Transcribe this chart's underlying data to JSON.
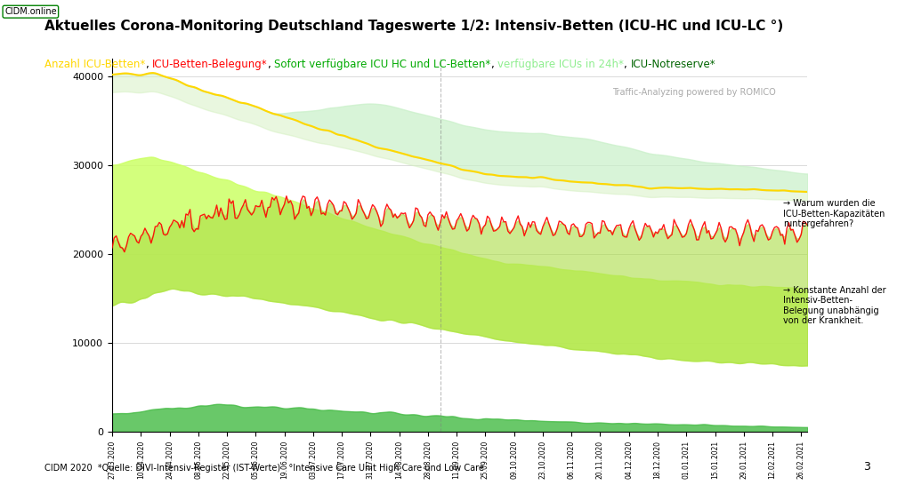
{
  "title": "Aktuelles Corona-Monitoring Deutschland Tageswerte 1/2: Intensiv-Betten (ICU-HC und ICU-LC °)",
  "subtitle_parts": [
    {
      "text": "Anzahl ICU-Betten*",
      "color": "#FFD700"
    },
    {
      "text": ", ",
      "color": "#000000"
    },
    {
      "text": "ICU-Betten-Belegung*",
      "color": "#FF0000"
    },
    {
      "text": ", ",
      "color": "#000000"
    },
    {
      "text": "Sofort verfügbare ICU HC und LC-Betten*",
      "color": "#00AA00"
    },
    {
      "text": ", ",
      "color": "#000000"
    },
    {
      "text": "verfügbare ICUs in 24h*",
      "color": "#90EE90"
    },
    {
      "text": ", ",
      "color": "#000000"
    },
    {
      "text": "ICU-Notreserve*",
      "color": "#006400"
    }
  ],
  "watermark": "Traffic-Analyzing powered by ROMICO",
  "footer": "CIDM 2020  *Quelle: DIVI-Intensiv-Register (IST-Werte)   °Intensive Care Unit High Care und Low Care",
  "page_number": "3",
  "cidm_label": "CIDM.online",
  "annotation_title": "Warum wurden die\nICU-Betten-Kapazitäten\nruntergefahren?",
  "annotation_body": "→ Konstante Anzahl der\nIntensiv-Betten-\nBelegung unabhängig\nvon der Krankheit.",
  "background_color": "#FFFFFF",
  "plot_bg_color": "#FFFFFF",
  "ylim": [
    0,
    42000
  ],
  "yticks": [
    0,
    10000,
    20000,
    30000,
    40000
  ]
}
